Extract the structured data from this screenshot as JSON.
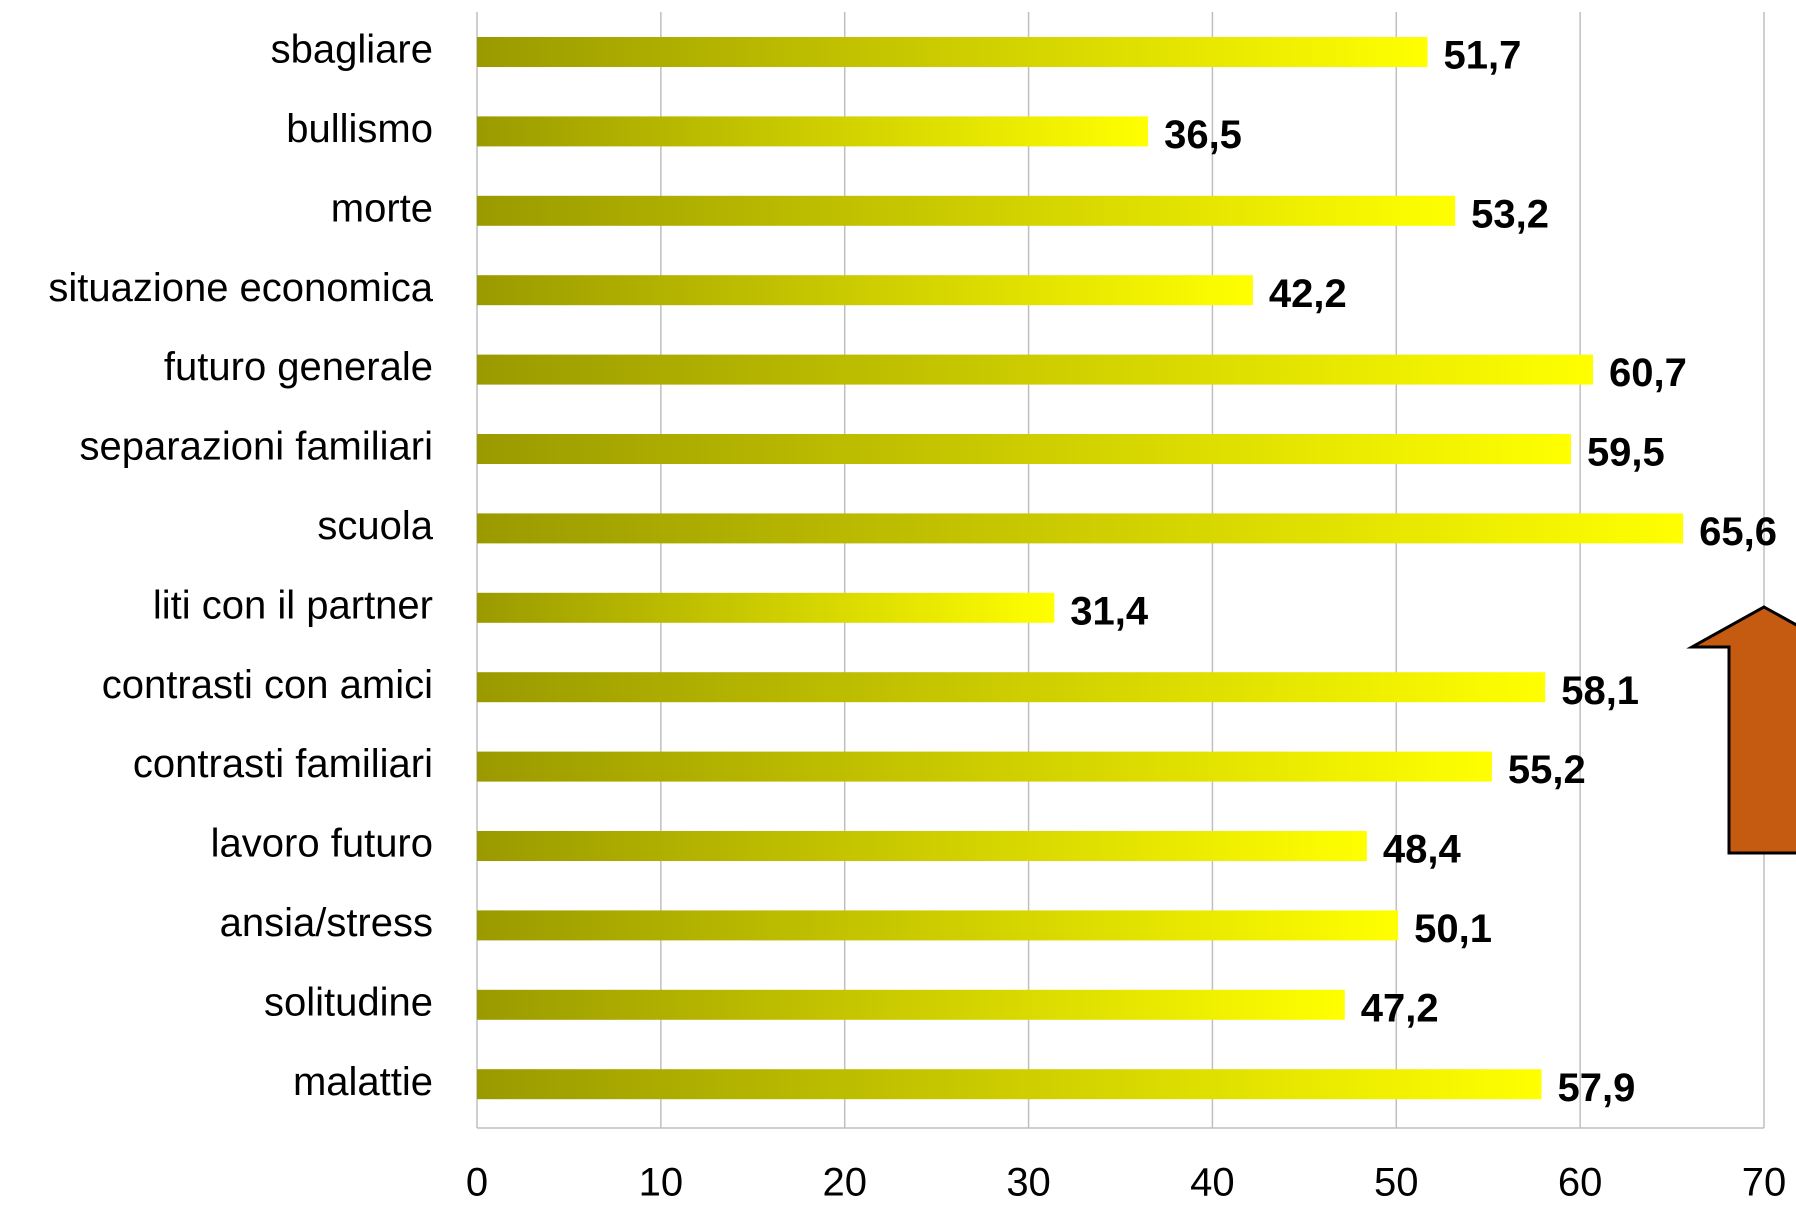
{
  "chart_data": {
    "type": "bar",
    "orientation": "horizontal",
    "categories": [
      "sbagliare",
      "bullismo",
      "morte",
      "situazione economica",
      "futuro generale",
      "separazioni familiari",
      "scuola",
      "liti con il partner",
      "contrasti con amici",
      "contrasti familiari",
      "lavoro futuro",
      "ansia/stress",
      "solitudine",
      "malattie"
    ],
    "values": [
      51.7,
      36.5,
      53.2,
      42.2,
      60.7,
      59.5,
      65.6,
      31.4,
      58.1,
      55.2,
      48.4,
      50.1,
      47.2,
      57.9
    ],
    "value_labels": [
      "51,7",
      "36,5",
      "53,2",
      "42,2",
      "60,7",
      "59,5",
      "65,6",
      "31,4",
      "58,1",
      "55,2",
      "48,4",
      "50,1",
      "47,2",
      "57,9"
    ],
    "color": [
      "#9a9a00",
      "#ffff00"
    ],
    "xlim": [
      0,
      70
    ],
    "xticks": [
      0,
      10,
      20,
      30,
      40,
      50,
      60,
      70
    ],
    "grid": true
  }
}
